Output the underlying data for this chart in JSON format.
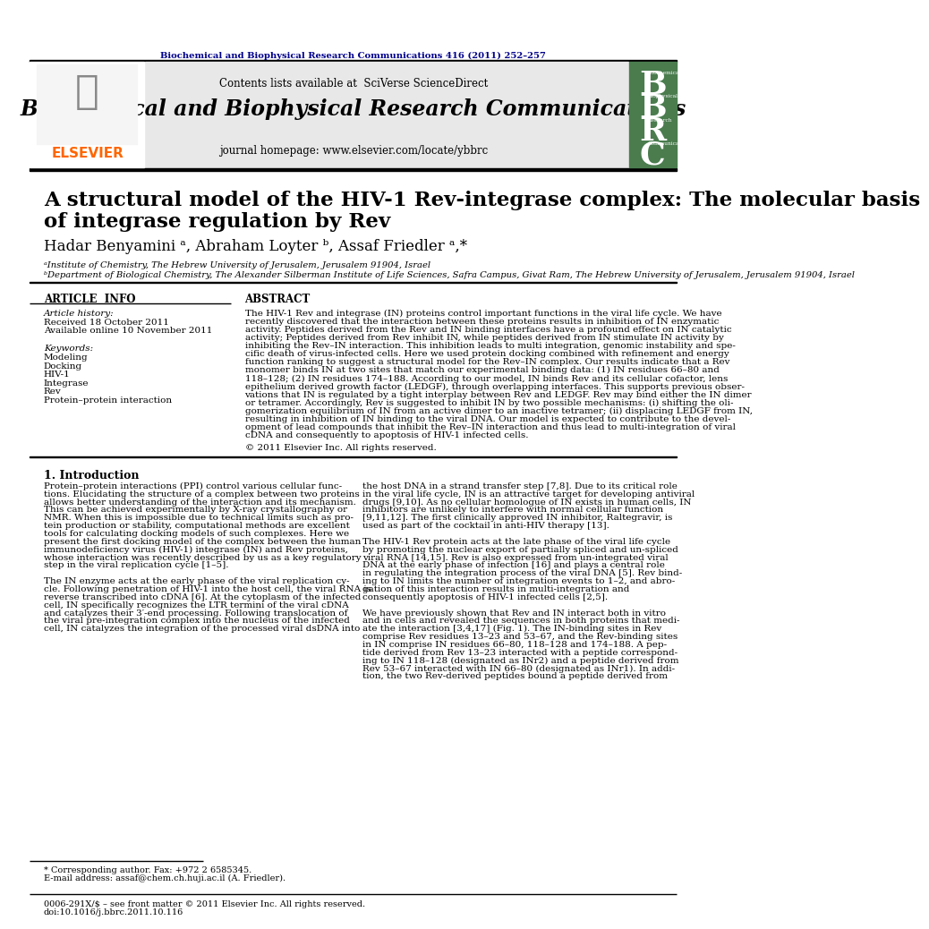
{
  "journal_ref": "Biochemical and Biophysical Research Communications 416 (2011) 252–257",
  "journal_name": "Biochemical and Biophysical Research Communications",
  "journal_homepage": "journal homepage: www.elsevier.com/locate/ybbrc",
  "contents_line": "Contents lists available at SciVerse ScienceDirect",
  "title_line1": "A structural model of the HIV-1 Rev-integrase complex: The molecular basis",
  "title_line2": "of integrase regulation by Rev",
  "authors": "Hadar Benyamini ᵃ, Abraham Loyter ᵇ, Assaf Friedler ᵃ,*",
  "affil_a": "ᵃInstitute of Chemistry, The Hebrew University of Jerusalem, Jerusalem 91904, Israel",
  "affil_b": "ᵇDepartment of Biological Chemistry, The Alexander Silberman Institute of Life Sciences, Safra Campus, Givat Ram, The Hebrew University of Jerusalem, Jerusalem 91904, Israel",
  "article_info_header": "ARTICLE  INFO",
  "abstract_header": "ABSTRACT",
  "article_history_label": "Article history:",
  "received": "Received 18 October 2011",
  "available": "Available online 10 November 2011",
  "keywords_label": "Keywords:",
  "keywords": [
    "Modeling",
    "Docking",
    "HIV-1",
    "Integrase",
    "Rev",
    "Protein–protein interaction"
  ],
  "copyright": "© 2011 Elsevier Inc. All rights reserved.",
  "intro_header": "1. Introduction",
  "footnote_star": "* Corresponding author. Fax: +972 2 6585345.",
  "footnote_email": "E-mail address: assaf@chem.ch.huji.ac.il (A. Friedler).",
  "footer_left": "0006-291X/$ – see front matter © 2011 Elsevier Inc. All rights reserved.",
  "footer_doi": "doi:10.1016/j.bbrc.2011.10.116",
  "bg_color": "#ffffff",
  "navy_color": "#00008B",
  "elsevier_orange": "#FF6600",
  "green_cover_color": "#4a7c4e",
  "sciverse_blue": "#4169AA",
  "light_gray": "#e8e8e8",
  "abstract_lines": [
    "The HIV-1 Rev and integrase (IN) proteins control important functions in the viral life cycle. We have",
    "recently discovered that the interaction between these proteins results in inhibition of IN enzymatic",
    "activity. Peptides derived from the Rev and IN binding interfaces have a profound effect on IN catalytic",
    "activity; Peptides derived from Rev inhibit IN, while peptides derived from IN stimulate IN activity by",
    "inhibiting the Rev–IN interaction. This inhibition leads to multi integration, genomic instability and spe-",
    "cific death of virus-infected cells. Here we used protein docking combined with refinement and energy",
    "function ranking to suggest a structural model for the Rev–IN complex. Our results indicate that a Rev",
    "monomer binds IN at two sites that match our experimental binding data: (1) IN residues 66–80 and",
    "118–128; (2) IN residues 174–188. According to our model, IN binds Rev and its cellular cofactor, lens",
    "epithelium derived growth factor (LEDGF), through overlapping interfaces. This supports previous obser-",
    "vations that IN is regulated by a tight interplay between Rev and LEDGF. Rev may bind either the IN dimer",
    "or tetramer. Accordingly, Rev is suggested to inhibit IN by two possible mechanisms: (i) shifting the oli-",
    "gomerization equilibrium of IN from an active dimer to an inactive tetramer; (ii) displacing LEDGF from IN,",
    "resulting in inhibition of IN binding to the viral DNA. Our model is expected to contribute to the devel-",
    "opment of lead compounds that inhibit the Rev–IN interaction and thus lead to multi-integration of viral",
    "cDNA and consequently to apoptosis of HIV-1 infected cells."
  ],
  "col1_lines": [
    "Protein–protein interactions (PPI) control various cellular func-",
    "tions. Elucidating the structure of a complex between two proteins",
    "allows better understanding of the interaction and its mechanism.",
    "This can be achieved experimentally by X-ray crystallography or",
    "NMR. When this is impossible due to technical limits such as pro-",
    "tein production or stability, computational methods are excellent",
    "tools for calculating docking models of such complexes. Here we",
    "present the first docking model of the complex between the human",
    "immunodeficiency virus (HIV-1) integrase (IN) and Rev proteins,",
    "whose interaction was recently described by us as a key regulatory",
    "step in the viral replication cycle [1–5].",
    "",
    "The IN enzyme acts at the early phase of the viral replication cy-",
    "cle. Following penetration of HIV-1 into the host cell, the viral RNA is",
    "reverse transcribed into cDNA [6]. At the cytoplasm of the infected",
    "cell, IN specifically recognizes the LTR termini of the viral cDNA",
    "and catalyzes their 3′-end processing. Following translocation of",
    "the viral pre-integration complex into the nucleus of the infected",
    "cell, IN catalyzes the integration of the processed viral dsDNA into"
  ],
  "col2_lines": [
    "the host DNA in a strand transfer step [7,8]. Due to its critical role",
    "in the viral life cycle, IN is an attractive target for developing antiviral",
    "drugs [9,10]. As no cellular homologue of IN exists in human cells, IN",
    "inhibitors are unlikely to interfere with normal cellular function",
    "[9,11,12]. The first clinically approved IN inhibitor, Raltegravir, is",
    "used as part of the cocktail in anti-HIV therapy [13].",
    "",
    "The HIV-1 Rev protein acts at the late phase of the viral life cycle",
    "by promoting the nuclear export of partially spliced and un-spliced",
    "viral RNA [14,15]. Rev is also expressed from un-integrated viral",
    "DNA at the early phase of infection [16] and plays a central role",
    "in regulating the integration process of the viral DNA [5]. Rev bind-",
    "ing to IN limits the number of integration events to 1–2, and abro-",
    "gation of this interaction results in multi-integration and",
    "consequently apoptosis of HIV-1 infected cells [2,5].",
    "",
    "We have previously shown that Rev and IN interact both in vitro",
    "and in cells and revealed the sequences in both proteins that medi-",
    "ate the interaction [3,4,17] (Fig. 1). The IN-binding sites in Rev",
    "comprise Rev residues 13–23 and 53–67, and the Rev-binding sites",
    "in IN comprise IN residues 66–80, 118–128 and 174–188. A pep-",
    "tide derived from Rev 13–23 interacted with a peptide correspond-",
    "ing to IN 118–128 (designated as INr2) and a peptide derived from",
    "Rev 53–67 interacted with IN 66–80 (designated as INr1). In addi-",
    "tion, the two Rev-derived peptides bound a peptide derived from"
  ]
}
